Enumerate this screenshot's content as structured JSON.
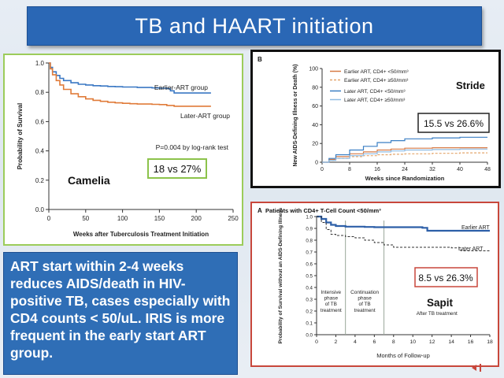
{
  "slide": {
    "title": "TB and HAART initiation"
  },
  "summary": {
    "text": "ART start within 2-4 weeks reduces AIDS/death in HIV-positive TB, cases especially with CD4 counts < 50/uL.  IRIS is more frequent in the early start ART group."
  },
  "colors": {
    "title_bg": "#2a67b5",
    "camelia_border": "#9ccc5a",
    "stride_border": "#111111",
    "sapit_border": "#c8473b",
    "earlier_line": "#3a78c4",
    "later_line": "#e07b39"
  },
  "chart_data": [
    {
      "type": "line",
      "title": "",
      "xlabel": "Weeks after Tuberculosis Treatment Initiation",
      "ylabel": "Probability of Survival",
      "xlim": [
        0,
        250
      ],
      "ylim": [
        0.0,
        1.0
      ],
      "xticks": [
        "0",
        "50",
        "100",
        "150",
        "200",
        "250"
      ],
      "yticks": [
        "0.0",
        "0.2",
        "0.4",
        "0.6",
        "0.8",
        "1.0"
      ],
      "grid": false,
      "annotations": {
        "study": "Camelia",
        "comparison": "18 vs 27%",
        "pvalue": "P=0.004 by log-rank test"
      },
      "series": [
        {
          "name": "Earlier-ART group",
          "x": [
            0,
            2,
            5,
            10,
            15,
            20,
            30,
            40,
            50,
            60,
            70,
            80,
            90,
            100,
            120,
            140,
            150,
            160,
            165,
            170,
            180,
            200,
            220
          ],
          "y": [
            1.0,
            0.97,
            0.94,
            0.915,
            0.895,
            0.88,
            0.865,
            0.855,
            0.85,
            0.845,
            0.843,
            0.84,
            0.838,
            0.836,
            0.833,
            0.83,
            0.828,
            0.826,
            0.81,
            0.795,
            0.795,
            0.795,
            0.795
          ]
        },
        {
          "name": "Later-ART group",
          "x": [
            0,
            2,
            5,
            10,
            15,
            20,
            30,
            40,
            50,
            60,
            70,
            80,
            90,
            100,
            110,
            120,
            140,
            150,
            160,
            170,
            180,
            200,
            220
          ],
          "y": [
            1.0,
            0.96,
            0.92,
            0.88,
            0.85,
            0.82,
            0.79,
            0.77,
            0.755,
            0.745,
            0.738,
            0.732,
            0.728,
            0.725,
            0.722,
            0.72,
            0.718,
            0.716,
            0.71,
            0.705,
            0.705,
            0.705,
            0.705
          ]
        }
      ]
    },
    {
      "type": "line",
      "panel_label": "B",
      "title": "",
      "xlabel": "Weeks since Randomization",
      "ylabel": "New AIDS-Defining Illness or Death (%)",
      "xlim": [
        0,
        48
      ],
      "ylim": [
        0,
        100
      ],
      "xticks": [
        "0",
        "8",
        "16",
        "24",
        "32",
        "40",
        "48"
      ],
      "yticks": [
        "0",
        "20",
        "40",
        "60",
        "80",
        "100"
      ],
      "grid": false,
      "legend_position": "top-left",
      "annotations": {
        "study": "Stride",
        "comparison": "15.5 vs 26.6%"
      },
      "series": [
        {
          "name": "Earlier ART, CD4+ <50/mm³",
          "x": [
            0,
            2,
            4,
            8,
            12,
            16,
            20,
            24,
            32,
            40,
            48
          ],
          "y": [
            0,
            3,
            6,
            9,
            11,
            13,
            14,
            15,
            15.5,
            15.5,
            15.5
          ]
        },
        {
          "name": "Earlier ART, CD4+ ≥50/mm³",
          "x": [
            0,
            2,
            4,
            8,
            12,
            16,
            20,
            24,
            32,
            40,
            48
          ],
          "y": [
            0,
            2,
            4,
            6,
            7,
            8,
            8.5,
            9,
            9.5,
            10,
            10
          ]
        },
        {
          "name": "Later ART, CD4+ <50/mm³",
          "x": [
            0,
            2,
            4,
            8,
            12,
            16,
            20,
            24,
            32,
            40,
            48
          ],
          "y": [
            0,
            4,
            8,
            13,
            17,
            21,
            23,
            25,
            26,
            26.6,
            26.6
          ]
        },
        {
          "name": "Later ART, CD4+ ≥50/mm³",
          "x": [
            0,
            2,
            4,
            8,
            12,
            16,
            20,
            24,
            32,
            40,
            48
          ],
          "y": [
            0,
            2,
            4,
            7,
            9,
            11,
            12,
            13,
            13.5,
            14,
            14
          ]
        }
      ]
    },
    {
      "type": "line",
      "panel_label": "A",
      "title": "Patients with CD4+ T-Cell Count <50/mm³",
      "xlabel": "Months of Follow-up",
      "ylabel": "Probability of Survival without an AIDS-Defining Illness",
      "xlim": [
        0,
        18
      ],
      "ylim": [
        0.0,
        1.0
      ],
      "xticks": [
        "0",
        "2",
        "4",
        "6",
        "8",
        "10",
        "12",
        "14",
        "16",
        "18"
      ],
      "yticks": [
        "0.0",
        "0.1",
        "0.2",
        "0.3",
        "0.4",
        "0.5",
        "0.6",
        "0.7",
        "0.8",
        "0.9",
        "1.0"
      ],
      "grid": false,
      "annotations": {
        "study": "Sapit",
        "comparison": "8.5 vs 26.3%"
      },
      "phase_lines": [
        3,
        7
      ],
      "phases": [
        {
          "label": "Intensive phase of TB treatment"
        },
        {
          "label": "Continuation phase of TB treatment"
        },
        {
          "label": "After TB treatment"
        }
      ],
      "series": [
        {
          "name": "Earlier ART",
          "x": [
            0,
            0.5,
            1,
            1.5,
            2,
            3,
            4,
            5,
            6,
            7,
            8,
            9,
            10,
            11,
            11.5,
            12,
            14,
            16,
            18
          ],
          "y": [
            1.0,
            0.98,
            0.95,
            0.93,
            0.92,
            0.915,
            0.915,
            0.912,
            0.91,
            0.91,
            0.91,
            0.91,
            0.91,
            0.905,
            0.88,
            0.88,
            0.88,
            0.88,
            0.88
          ]
        },
        {
          "name": "Later ART",
          "x": [
            0,
            0.5,
            1,
            1.5,
            2,
            3,
            4,
            5,
            6,
            7,
            8,
            9,
            10,
            12,
            14,
            15,
            16,
            17,
            18
          ],
          "y": [
            1.0,
            0.95,
            0.89,
            0.85,
            0.84,
            0.83,
            0.82,
            0.8,
            0.78,
            0.76,
            0.74,
            0.74,
            0.74,
            0.74,
            0.735,
            0.71,
            0.71,
            0.71,
            0.71
          ]
        }
      ]
    }
  ]
}
